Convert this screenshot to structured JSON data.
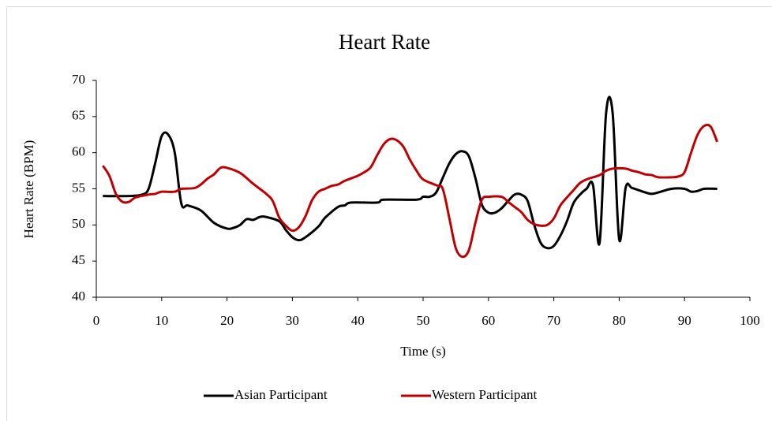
{
  "chart_data": {
    "type": "line",
    "title": "Heart Rate",
    "x_label": "Time (s)",
    "y_label": "Heart Rate (BPM)",
    "xlim": [
      0,
      100
    ],
    "xticks": [
      0,
      10,
      20,
      30,
      40,
      50,
      60,
      70,
      80,
      90,
      100
    ],
    "ylim": [
      40,
      70
    ],
    "yticks": [
      40,
      45,
      50,
      55,
      60,
      65,
      70
    ],
    "grid": false,
    "legend": "bottom",
    "series": [
      {
        "name": "Asian Participant",
        "color": "#000000",
        "x": [
          1,
          5,
          7,
          8,
          9,
          10,
          11,
          12,
          13,
          14,
          16,
          18,
          20,
          21,
          22,
          23,
          24,
          25,
          26,
          28,
          29,
          30,
          31,
          32,
          34,
          35,
          37,
          38,
          39,
          43,
          44,
          49,
          50,
          51,
          52,
          53,
          54,
          55,
          56,
          57,
          58,
          59,
          60,
          61,
          62,
          63,
          64,
          65,
          66,
          67,
          68,
          69,
          70,
          71,
          72,
          73,
          74,
          75,
          76,
          77,
          78,
          79,
          80,
          81,
          82,
          84,
          85,
          86,
          88,
          90,
          91,
          92,
          93,
          95
        ],
        "values": [
          54,
          54,
          54.2,
          55,
          58.5,
          62.3,
          62.5,
          60,
          53,
          52.7,
          52,
          50.3,
          49.5,
          49.6,
          50,
          50.8,
          50.7,
          51.1,
          51.1,
          50.5,
          49.3,
          48.3,
          47.9,
          48.3,
          49.8,
          51,
          52.5,
          52.7,
          53.1,
          53.1,
          53.5,
          53.5,
          53.9,
          53.9,
          54.5,
          56.5,
          58.5,
          59.8,
          60.2,
          59.5,
          56.5,
          52.8,
          51.7,
          51.7,
          52.3,
          53.3,
          54.2,
          54.2,
          53.3,
          50,
          47.5,
          46.8,
          47.1,
          48.5,
          50.5,
          53,
          54.2,
          55,
          55.5,
          47.5,
          65.5,
          65.5,
          48,
          55.2,
          55.1,
          54.5,
          54.3,
          54.5,
          55,
          55,
          54.6,
          54.7,
          55,
          55
        ]
      },
      {
        "name": "Western Participant",
        "color": "#c00000",
        "x": [
          1,
          2,
          3,
          4,
          5,
          6,
          8,
          9,
          10,
          12,
          13,
          15,
          16,
          17,
          18,
          19,
          20,
          22,
          24,
          26,
          27,
          28,
          29,
          30,
          31,
          32,
          33,
          34,
          35,
          36,
          37,
          38,
          40,
          41,
          42,
          43,
          44,
          45,
          46,
          47,
          48,
          49,
          50,
          52,
          53,
          54,
          55,
          56,
          57,
          58,
          59,
          60,
          62,
          63,
          64,
          65,
          66,
          67,
          68,
          69,
          70,
          71,
          72,
          73,
          74,
          75,
          77,
          78,
          79,
          81,
          82,
          83,
          84,
          85,
          86,
          88,
          89,
          90,
          91,
          92,
          93,
          94,
          95
        ],
        "values": [
          58.2,
          56.8,
          54.3,
          53.2,
          53.2,
          53.8,
          54.2,
          54.3,
          54.6,
          54.6,
          55,
          55.1,
          55.6,
          56.4,
          57,
          57.9,
          57.9,
          57.2,
          55.7,
          54.3,
          53.3,
          51,
          49.9,
          49.2,
          49.7,
          51.2,
          53.4,
          54.6,
          55,
          55.4,
          55.6,
          56.1,
          56.8,
          57.3,
          58,
          59.7,
          61.2,
          61.9,
          61.7,
          60.8,
          59,
          57.5,
          56.3,
          55.5,
          55,
          51,
          46.8,
          45.6,
          46.5,
          50.3,
          53.5,
          53.9,
          53.9,
          53.2,
          52.5,
          51.8,
          50.7,
          50.1,
          49.9,
          50,
          50.9,
          52.7,
          53.8,
          54.8,
          55.8,
          56.3,
          56.9,
          57.5,
          57.8,
          57.8,
          57.5,
          57.3,
          57,
          56.9,
          56.6,
          56.6,
          56.7,
          57.3,
          60,
          62.5,
          63.7,
          63.6,
          61.5
        ]
      }
    ]
  }
}
